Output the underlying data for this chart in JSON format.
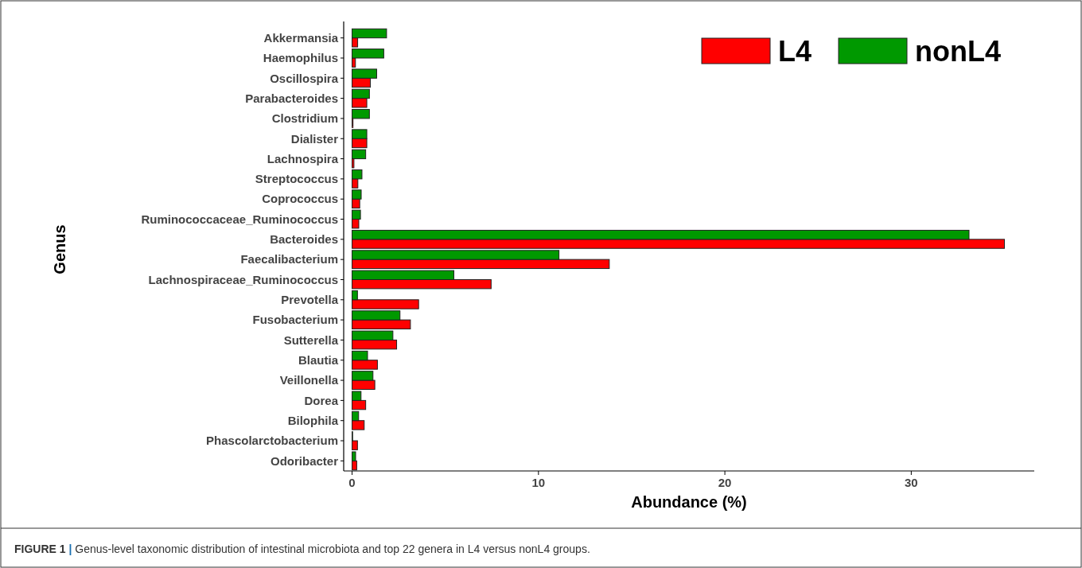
{
  "chart_data": {
    "type": "bar",
    "orientation": "horizontal",
    "xlabel": "Abundance (%)",
    "ylabel": "Genus",
    "categories": [
      "Akkermansia",
      "Haemophilus",
      "Oscillospira",
      "Parabacteroides",
      "Clostridium",
      "Dialister",
      "Lachnospira",
      "Streptococcus",
      "Coprococcus",
      "Ruminococcaceae_Ruminococcus",
      "Bacteroides",
      "Faecalibacterium",
      "Lachnospiraceae_Ruminococcus",
      "Prevotella",
      "Fusobacterium",
      "Sutterella",
      "Blautia",
      "Veillonella",
      "Dorea",
      "Bilophila",
      "Phascolarctobacterium",
      "Odoribacter"
    ],
    "series": [
      {
        "name": "L4",
        "color": "#ff0000",
        "values": [
          0.3,
          0.18,
          0.98,
          0.79,
          0.05,
          0.79,
          0.1,
          0.31,
          0.41,
          0.36,
          35.0,
          13.8,
          7.46,
          3.57,
          3.13,
          2.39,
          1.36,
          1.22,
          0.73,
          0.65,
          0.29,
          0.25
        ]
      },
      {
        "name": "nonL4",
        "color": "#009900",
        "values": [
          1.85,
          1.7,
          1.32,
          0.93,
          0.93,
          0.79,
          0.73,
          0.53,
          0.49,
          0.45,
          33.1,
          11.1,
          5.46,
          0.29,
          2.57,
          2.19,
          0.83,
          1.12,
          0.48,
          0.35,
          0.03,
          0.19
        ]
      }
    ],
    "xlim": [
      -0.45,
      36.6
    ],
    "xticks": [
      0,
      10,
      20,
      30
    ],
    "grid": false,
    "legend": "top right",
    "annotations": [
      "FIGURE 1 | Genus-level taxonomic distribution of intestinal microbiota and top 22 genera in L4 versus nonL4 groups."
    ]
  }
}
